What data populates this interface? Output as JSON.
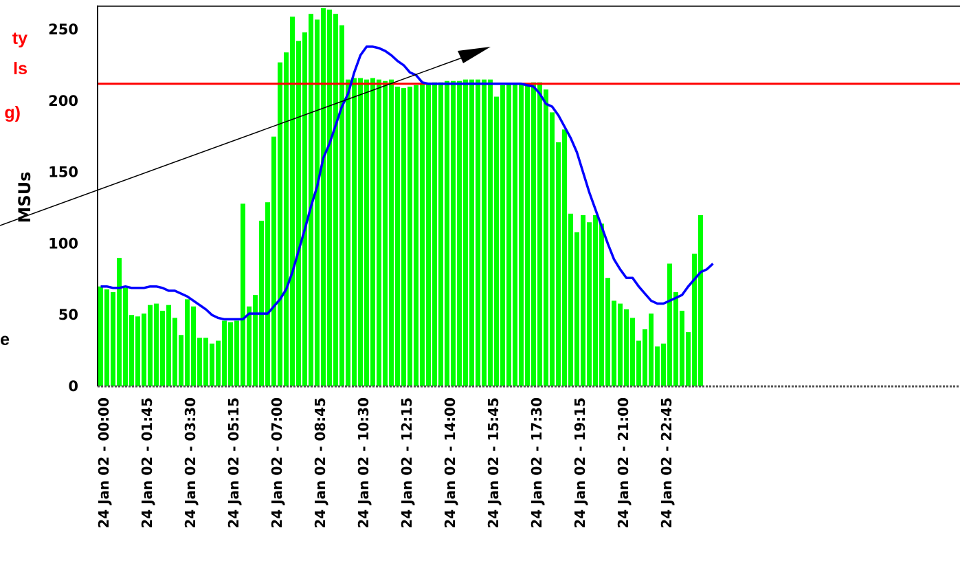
{
  "chart_data": {
    "type": "bar",
    "ylabel": "MSUs",
    "ylim": [
      0,
      265
    ],
    "yticks": [
      0,
      50,
      100,
      150,
      200,
      250
    ],
    "x_tick_labels": [
      "24 Jan 02 - 00:00",
      "24 Jan 02 - 01:45",
      "24 Jan 02 - 03:30",
      "24 Jan 02 - 05:15",
      "24 Jan 02 - 07:00",
      "24 Jan 02 - 08:45",
      "24 Jan 02 - 10:30",
      "24 Jan 02 - 12:15",
      "24 Jan 02 - 14:00",
      "24 Jan 02 - 15:45",
      "24 Jan 02 - 17:30",
      "24 Jan 02 - 19:15",
      "24 Jan 02 - 21:00",
      "24 Jan 02 - 22:45"
    ],
    "interval_minutes": 15,
    "bar_color": "#00ff00",
    "line_color": "#0000ff",
    "threshold_color": "#ff0000",
    "threshold_value": 212,
    "bars": [
      70,
      68,
      66,
      90,
      69,
      50,
      49,
      51,
      57,
      58,
      53,
      57,
      48,
      36,
      61,
      56,
      34,
      34,
      30,
      32,
      46,
      45,
      46,
      128,
      56,
      64,
      116,
      129,
      175,
      227,
      234,
      259,
      242,
      248,
      261,
      257,
      265,
      264,
      261,
      253,
      215,
      216,
      216,
      215,
      216,
      215,
      214,
      215,
      210,
      209,
      210,
      211,
      212,
      212,
      213,
      213,
      214,
      214,
      214,
      215,
      215,
      215,
      215,
      215,
      203,
      211,
      212,
      212,
      212,
      212,
      213,
      213,
      208,
      192,
      171,
      180,
      121,
      108,
      120,
      115,
      120,
      114,
      76,
      60,
      58,
      54,
      48,
      32,
      40,
      51,
      28,
      30,
      86,
      66,
      53,
      38,
      93,
      120
    ],
    "line": [
      70,
      70,
      69,
      69,
      70,
      69,
      69,
      69,
      70,
      70,
      69,
      67,
      67,
      65,
      63,
      60,
      57,
      54,
      50,
      48,
      47,
      47,
      47,
      47,
      51,
      51,
      51,
      51,
      56,
      61,
      68,
      80,
      95,
      110,
      126,
      140,
      160,
      170,
      183,
      196,
      205,
      220,
      232,
      238,
      238,
      237,
      235,
      232,
      228,
      225,
      220,
      218,
      213,
      212,
      212,
      212,
      212,
      212,
      212,
      212,
      212,
      212,
      212,
      212,
      212,
      212,
      212,
      212,
      212,
      211,
      210,
      205,
      198,
      196,
      190,
      182,
      174,
      164,
      150,
      136,
      124,
      112,
      100,
      89,
      82,
      76,
      76,
      70,
      65,
      60,
      58,
      58,
      60,
      62,
      64,
      70,
      75,
      80,
      82,
      86
    ]
  },
  "annotation": {
    "red_lines": [
      "ty",
      "ls",
      "g)"
    ],
    "black_text": "e"
  }
}
